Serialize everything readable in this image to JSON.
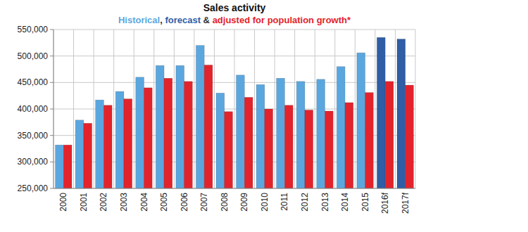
{
  "chart_data": {
    "type": "bar",
    "title": "Sales activity",
    "subtitle": "Historical, forecast & adjusted for population growth*",
    "categories": [
      "2000",
      "2001",
      "2002",
      "2003",
      "2004",
      "2005",
      "2006",
      "2007",
      "2008",
      "2009",
      "2010",
      "2011",
      "2012",
      "2013",
      "2014",
      "2015",
      "2016f",
      "2017f"
    ],
    "series": [
      {
        "name": "Historical",
        "color": "#5aa7e0",
        "values": [
          332000,
          379000,
          417000,
          433000,
          460000,
          482000,
          482000,
          520000,
          430000,
          464000,
          446000,
          458000,
          452000,
          456000,
          480000,
          506000,
          null,
          null
        ]
      },
      {
        "name": "forecast",
        "color": "#2f5da6",
        "values": [
          null,
          null,
          null,
          null,
          null,
          null,
          null,
          null,
          null,
          null,
          null,
          null,
          null,
          null,
          null,
          null,
          535000,
          532000
        ]
      },
      {
        "name": "adjusted for population growth*",
        "color": "#e3232b",
        "values": [
          332000,
          373000,
          407000,
          419000,
          440000,
          458000,
          452000,
          483000,
          395000,
          422000,
          400000,
          407000,
          398000,
          396000,
          412000,
          431000,
          452000,
          445000
        ]
      }
    ],
    "ylim": [
      250000,
      550000
    ],
    "yticks": [
      {
        "value": 250000,
        "label": "250,000"
      },
      {
        "value": 300000,
        "label": "300,000"
      },
      {
        "value": 350000,
        "label": "350,000"
      },
      {
        "value": 400000,
        "label": "400,000"
      },
      {
        "value": 450000,
        "label": "450,000"
      },
      {
        "value": 500000,
        "label": "500,000"
      },
      {
        "value": 550000,
        "label": "550,000"
      }
    ],
    "grid": true
  }
}
